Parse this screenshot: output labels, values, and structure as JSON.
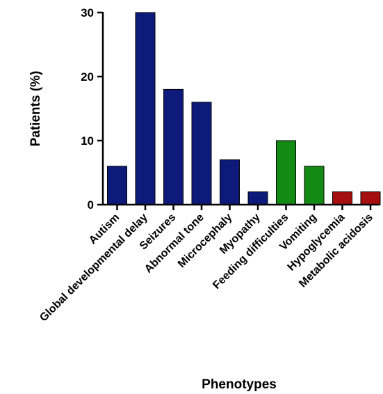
{
  "chart_data": {
    "type": "bar",
    "xlabel": "Phenotypes",
    "ylabel": "Patients (%)",
    "ylim": [
      0,
      30
    ],
    "yticks": [
      "0",
      "10",
      "20",
      "30"
    ],
    "grid": false,
    "categories": [
      "Autism",
      "Global developmental delay",
      "Seizures",
      "Abnormal tone",
      "Microcephaly",
      "Myopathy",
      "Feeding difficulties",
      "Vomiting",
      "Hypoglycemia",
      "Metabolic acidosis"
    ],
    "values": [
      6,
      30,
      18,
      16,
      7,
      2,
      10,
      6,
      2,
      2
    ],
    "bar_colors": [
      "#0d1a7a",
      "#0d1a7a",
      "#0d1a7a",
      "#0d1a7a",
      "#0d1a7a",
      "#0d1a7a",
      "#138a13",
      "#138a13",
      "#a50f0f",
      "#a50f0f"
    ]
  }
}
